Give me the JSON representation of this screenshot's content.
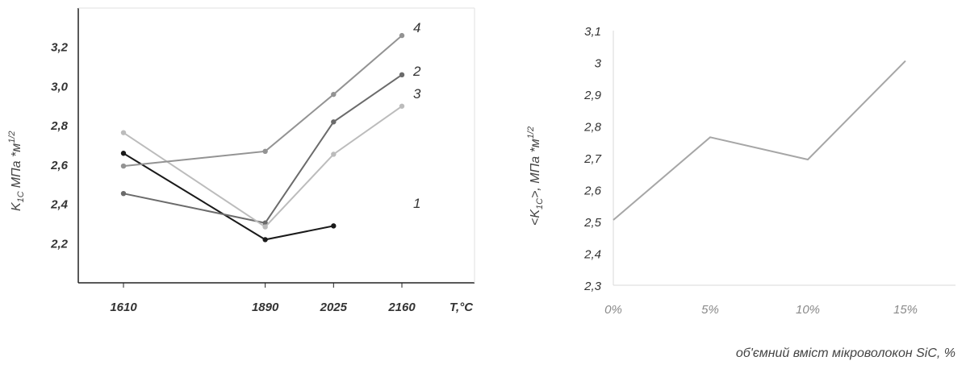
{
  "chart_data": [
    {
      "type": "line",
      "xlabel": "T,°C",
      "ylabel": "K",
      "ylabel_sub": "1C",
      "ylabel_rest": "МПа *м",
      "ylabel_sup": "1/2",
      "x": [
        1610,
        1890,
        2025,
        2160
      ],
      "x_tick_labels": [
        "1610",
        "1890",
        "2025",
        "2160"
      ],
      "ylim": [
        2.0,
        3.4
      ],
      "y_ticks": [
        "2,2",
        "2,4",
        "2,6",
        "2,8",
        "3,0",
        "3,2"
      ],
      "grid": false,
      "series": [
        {
          "name": "1",
          "values": [
            2.66,
            2.22,
            2.29,
            null
          ],
          "color": "#1a1a1a"
        },
        {
          "name": "2",
          "values": [
            2.455,
            2.305,
            2.82,
            3.06
          ],
          "color": "#6b6b6b"
        },
        {
          "name": "3",
          "values": [
            2.765,
            2.285,
            2.655,
            2.9
          ],
          "color": "#bcbcbc"
        },
        {
          "name": "4",
          "values": [
            2.595,
            2.67,
            2.96,
            3.26
          ],
          "color": "#939393"
        }
      ]
    },
    {
      "type": "line",
      "xlabel": "об'ємний вміст мікроволокон SiC, %",
      "ylabel": "<K",
      "ylabel_sub": "1C",
      "ylabel_rest": ">, МПа *м",
      "ylabel_sup": "1/2",
      "categories": [
        "0%",
        "5%",
        "10%",
        "15%"
      ],
      "ylim": [
        2.3,
        3.1
      ],
      "y_ticks": [
        "2,3",
        "2,4",
        "2,5",
        "2,6",
        "2,7",
        "2,8",
        "2,9",
        "3",
        "3,1"
      ],
      "grid": false,
      "series": [
        {
          "values": [
            2.505,
            2.765,
            2.695,
            3.005
          ],
          "color": "#a6a6a6"
        }
      ]
    }
  ]
}
